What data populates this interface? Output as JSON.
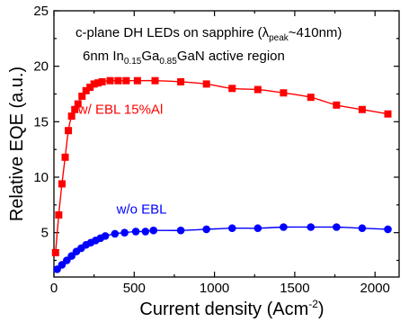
{
  "chart_data": {
    "type": "scatter",
    "xlabel": "Current density (Acm",
    "xlabel_sup": "-2",
    "xlabel_end": ")",
    "ylabel": "Relative EQE (a.u.)",
    "xlim": [
      0,
      2150
    ],
    "ylim": [
      1,
      25
    ],
    "xticks": [
      0,
      500,
      1000,
      1500,
      2000
    ],
    "yticks": [
      5,
      10,
      15,
      20,
      25
    ],
    "grid": false,
    "legend": "none",
    "annotations": {
      "line1_main": "c-plane DH LEDs on sapphire (",
      "line1_lambda": "λ",
      "line1_sub": "peak",
      "line1_end": "~410nm)",
      "line2_a": "6nm In",
      "line2_sub1": "0.15",
      "line2_b": "Ga",
      "line2_sub2": "0.85",
      "line2_c": "GaN active region"
    },
    "series": [
      {
        "name": "w/ EBL 15%Al",
        "color": "#ff0000",
        "marker": "square",
        "label_pos": [
          150,
          15.7
        ],
        "x": [
          10,
          30,
          50,
          70,
          90,
          110,
          130,
          150,
          175,
          200,
          225,
          250,
          275,
          300,
          350,
          400,
          450,
          520,
          630,
          790,
          950,
          1110,
          1270,
          1430,
          1600,
          1760,
          1920,
          2080
        ],
        "y": [
          3.2,
          6.6,
          9.4,
          11.8,
          14.2,
          15.5,
          16.1,
          16.6,
          17.3,
          17.8,
          18.1,
          18.4,
          18.5,
          18.6,
          18.7,
          18.7,
          18.7,
          18.7,
          18.7,
          18.6,
          18.4,
          18.0,
          17.9,
          17.6,
          17.2,
          16.5,
          16.1,
          15.7
        ]
      },
      {
        "name": "w/o EBL",
        "color": "#0000ff",
        "marker": "circle",
        "label_pos": [
          390,
          6.7
        ],
        "x": [
          20,
          50,
          80,
          110,
          140,
          170,
          200,
          230,
          260,
          290,
          320,
          380,
          440,
          510,
          570,
          620,
          790,
          950,
          1110,
          1270,
          1430,
          1600,
          1760,
          1920,
          2080
        ],
        "y": [
          1.7,
          2.1,
          2.5,
          2.9,
          3.3,
          3.6,
          3.9,
          4.1,
          4.3,
          4.5,
          4.7,
          4.9,
          5.0,
          5.1,
          5.1,
          5.2,
          5.2,
          5.3,
          5.4,
          5.4,
          5.5,
          5.5,
          5.5,
          5.4,
          5.3
        ]
      }
    ]
  }
}
